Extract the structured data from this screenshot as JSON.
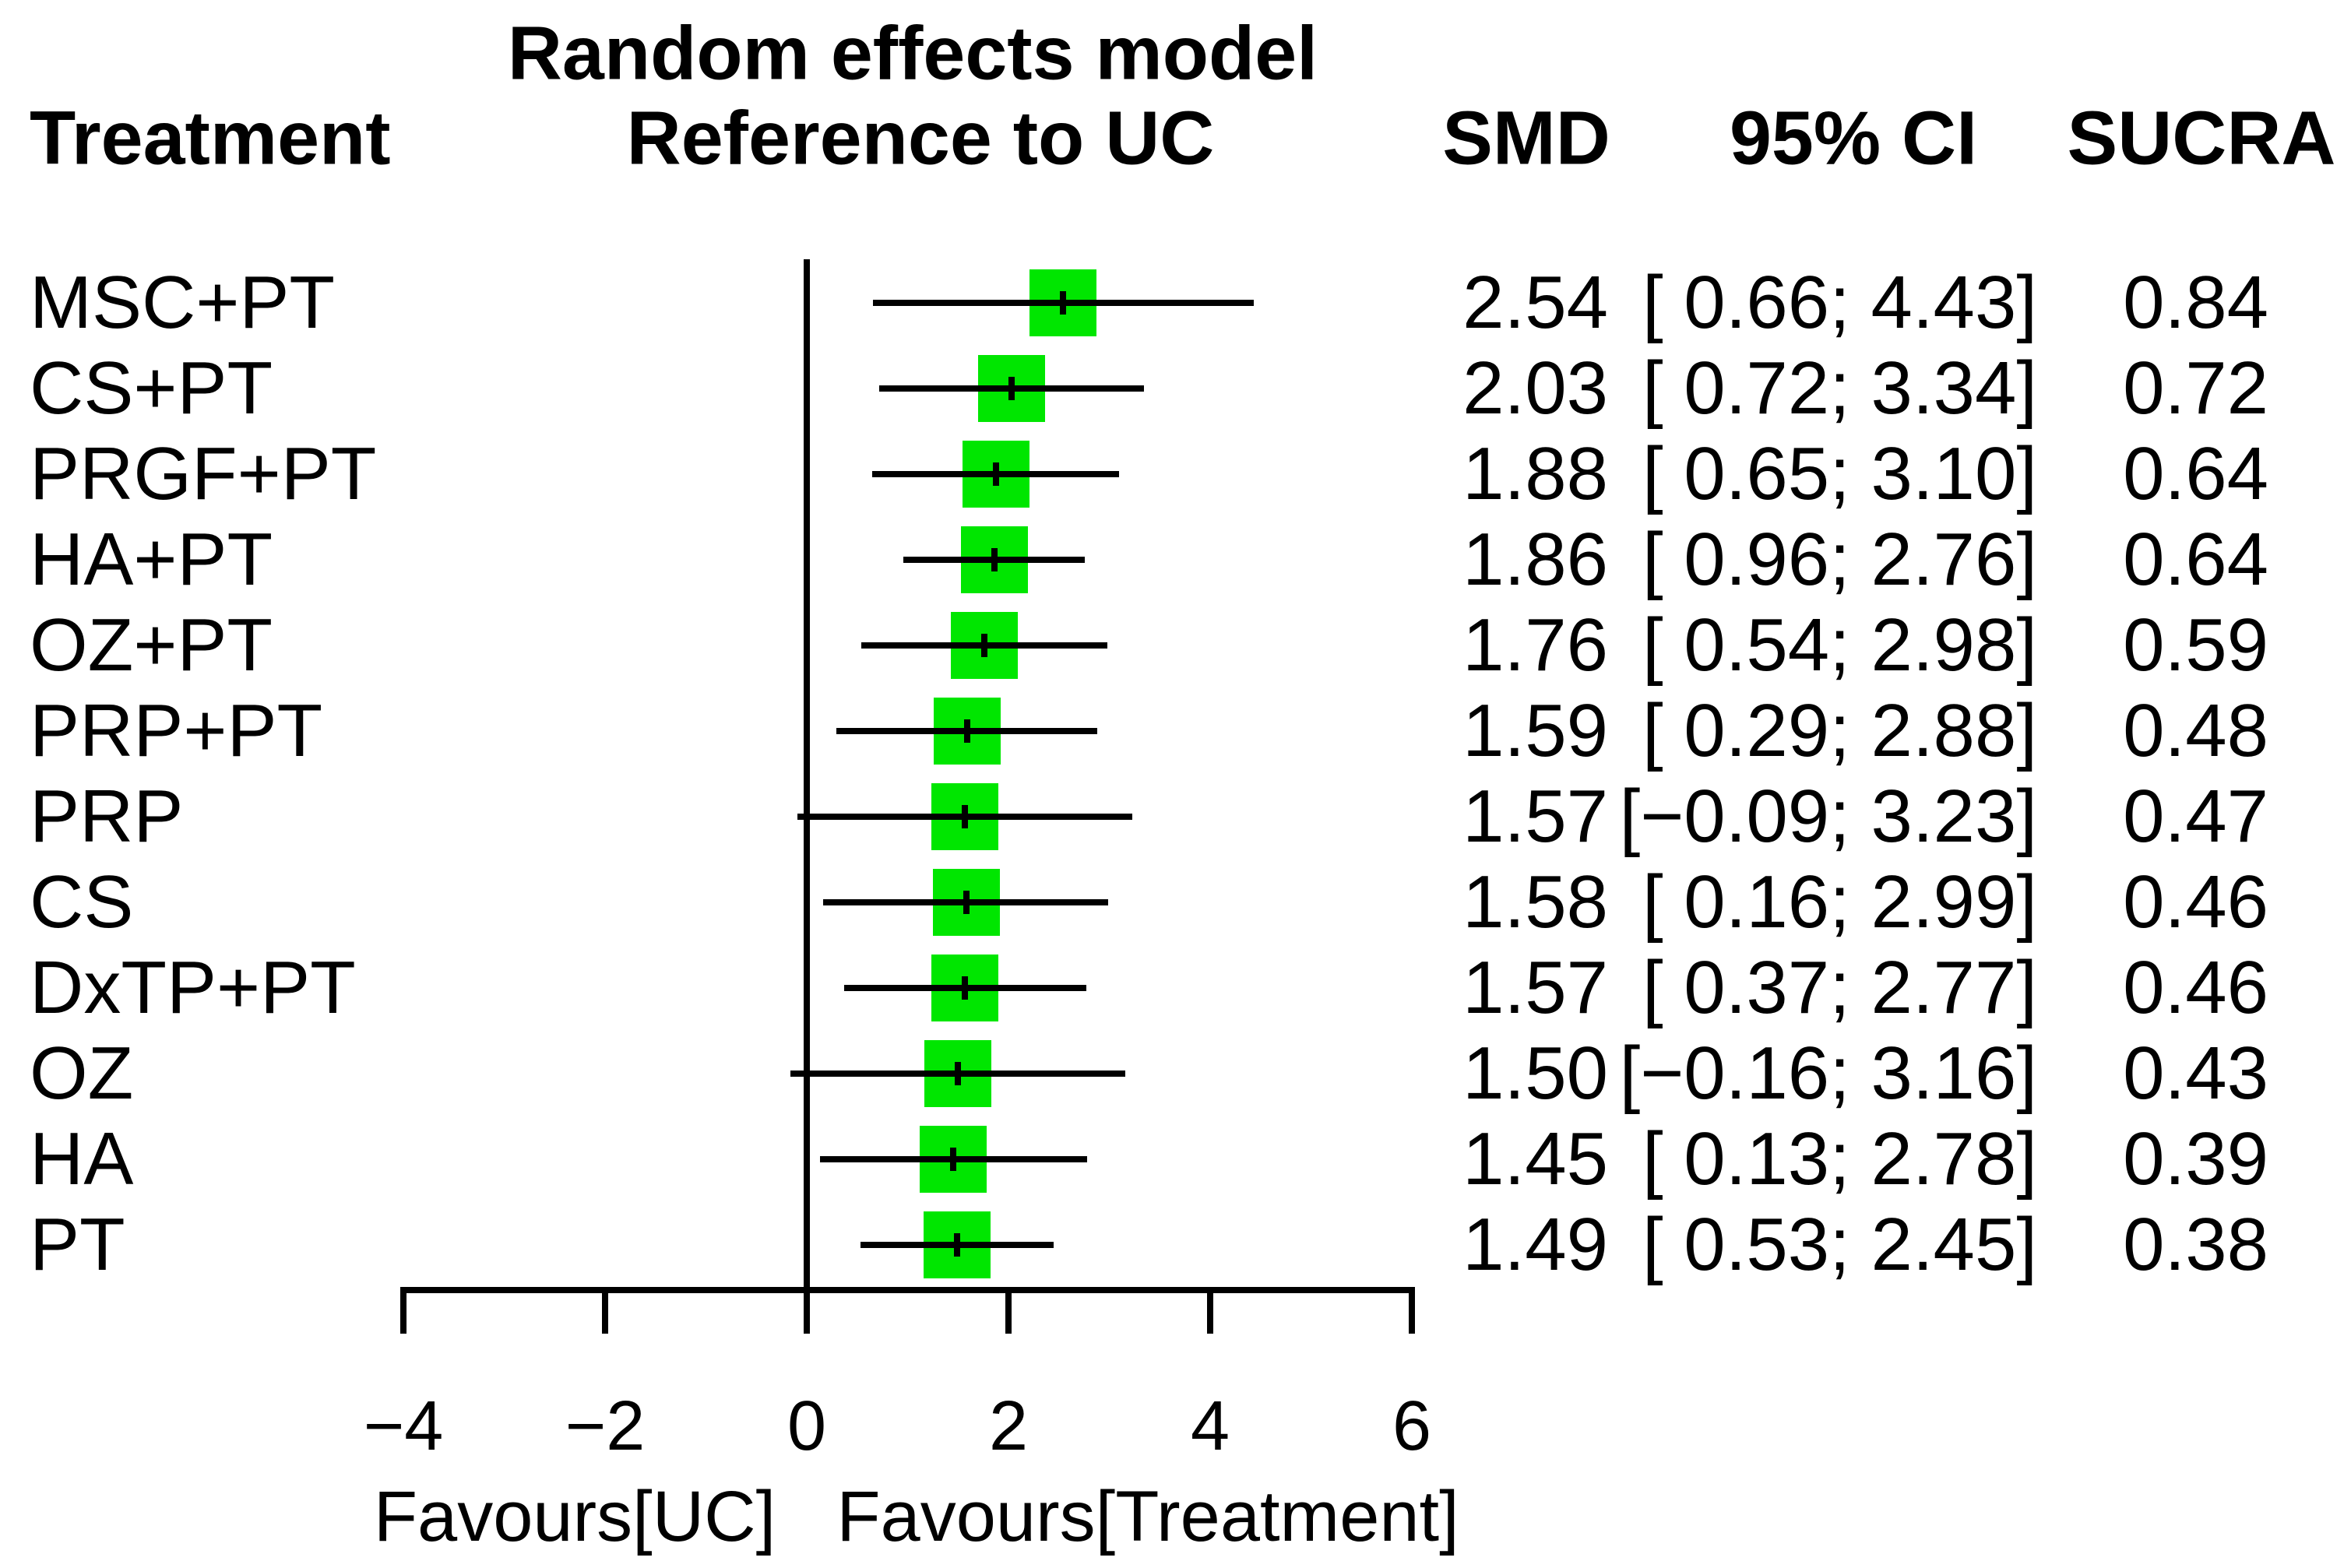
{
  "chart_data": {
    "type": "forest",
    "title": "Random effects model",
    "subtitle": "Reference to UC",
    "columns": {
      "treatment": "Treatment",
      "smd": "SMD",
      "ci": "95% CI",
      "sucra": "SUCRA"
    },
    "axis": {
      "xlim": [
        -4,
        6
      ],
      "ticks": [
        -4,
        -2,
        0,
        2,
        4,
        6
      ],
      "tick_labels": [
        "−4",
        "−2",
        "0",
        "2",
        "4",
        "6"
      ],
      "ref_line": 0,
      "favours_left": "Favours[UC]",
      "favours_right": "Favours[Treatment]"
    },
    "rows": [
      {
        "treatment": "MSC+PT",
        "smd": 2.54,
        "ci_low": 0.66,
        "ci_high": 4.43,
        "smd_text": "2.54",
        "ci_text": "[ 0.66; 4.43]",
        "sucra_text": "0.84"
      },
      {
        "treatment": "CS+PT",
        "smd": 2.03,
        "ci_low": 0.72,
        "ci_high": 3.34,
        "smd_text": "2.03",
        "ci_text": "[ 0.72; 3.34]",
        "sucra_text": "0.72"
      },
      {
        "treatment": "PRGF+PT",
        "smd": 1.88,
        "ci_low": 0.65,
        "ci_high": 3.1,
        "smd_text": "1.88",
        "ci_text": "[ 0.65; 3.10]",
        "sucra_text": "0.64"
      },
      {
        "treatment": "HA+PT",
        "smd": 1.86,
        "ci_low": 0.96,
        "ci_high": 2.76,
        "smd_text": "1.86",
        "ci_text": "[ 0.96; 2.76]",
        "sucra_text": "0.64"
      },
      {
        "treatment": "OZ+PT",
        "smd": 1.76,
        "ci_low": 0.54,
        "ci_high": 2.98,
        "smd_text": "1.76",
        "ci_text": "[ 0.54; 2.98]",
        "sucra_text": "0.59"
      },
      {
        "treatment": "PRP+PT",
        "smd": 1.59,
        "ci_low": 0.29,
        "ci_high": 2.88,
        "smd_text": "1.59",
        "ci_text": "[ 0.29; 2.88]",
        "sucra_text": "0.48"
      },
      {
        "treatment": "PRP",
        "smd": 1.57,
        "ci_low": -0.09,
        "ci_high": 3.23,
        "smd_text": "1.57",
        "ci_text": "[−0.09; 3.23]",
        "sucra_text": "0.47"
      },
      {
        "treatment": "CS",
        "smd": 1.58,
        "ci_low": 0.16,
        "ci_high": 2.99,
        "smd_text": "1.58",
        "ci_text": "[ 0.16; 2.99]",
        "sucra_text": "0.46"
      },
      {
        "treatment": "DxTP+PT",
        "smd": 1.57,
        "ci_low": 0.37,
        "ci_high": 2.77,
        "smd_text": "1.57",
        "ci_text": "[ 0.37; 2.77]",
        "sucra_text": "0.46"
      },
      {
        "treatment": "OZ",
        "smd": 1.5,
        "ci_low": -0.16,
        "ci_high": 3.16,
        "smd_text": "1.50",
        "ci_text": "[−0.16; 3.16]",
        "sucra_text": "0.43"
      },
      {
        "treatment": "HA",
        "smd": 1.45,
        "ci_low": 0.13,
        "ci_high": 2.78,
        "smd_text": "1.45",
        "ci_text": "[ 0.13; 2.78]",
        "sucra_text": "0.39"
      },
      {
        "treatment": "PT",
        "smd": 1.49,
        "ci_low": 0.53,
        "ci_high": 2.45,
        "smd_text": "1.49",
        "ci_text": "[ 0.53; 2.45]",
        "sucra_text": "0.38"
      }
    ],
    "colors": {
      "square": "#00e600",
      "line": "#000000",
      "text": "#000000",
      "background": "#ffffff"
    }
  }
}
